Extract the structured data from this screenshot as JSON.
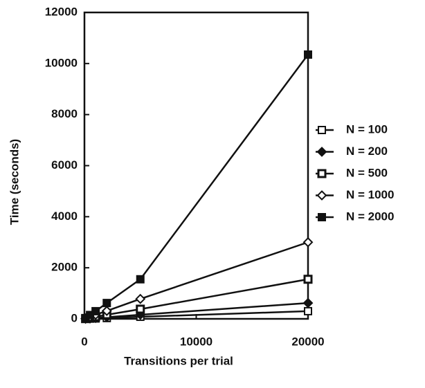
{
  "chart_data": {
    "type": "line",
    "x_label": "Transitions per trial",
    "y_label": "Time (seconds)",
    "xlim": [
      0,
      20000
    ],
    "xticks": [
      0,
      10000,
      20000
    ],
    "ylim": [
      0,
      12000
    ],
    "yticks": [
      0,
      2000,
      4000,
      6000,
      8000,
      10000,
      12000
    ],
    "x": [
      100,
      500,
      1000,
      2000,
      5000,
      20000
    ],
    "legend": "right",
    "series": [
      {
        "name": "N = 100",
        "color": "#111111",
        "marker": "square-open",
        "values": [
          2,
          8,
          15,
          30,
          80,
          300
        ]
      },
      {
        "name": "N = 200",
        "color": "#111111",
        "marker": "diamond-filled",
        "values": [
          3,
          15,
          30,
          65,
          160,
          620
        ]
      },
      {
        "name": "N = 500",
        "color": "#111111",
        "marker": "square-half",
        "values": [
          8,
          40,
          80,
          160,
          380,
          1550
        ]
      },
      {
        "name": "N = 1000",
        "color": "#111111",
        "marker": "diamond-open",
        "values": [
          15,
          80,
          160,
          310,
          780,
          3000
        ]
      },
      {
        "name": "N = 2000",
        "color": "#111111",
        "marker": "square-filled",
        "values": [
          30,
          150,
          300,
          620,
          1550,
          10350
        ]
      }
    ]
  }
}
